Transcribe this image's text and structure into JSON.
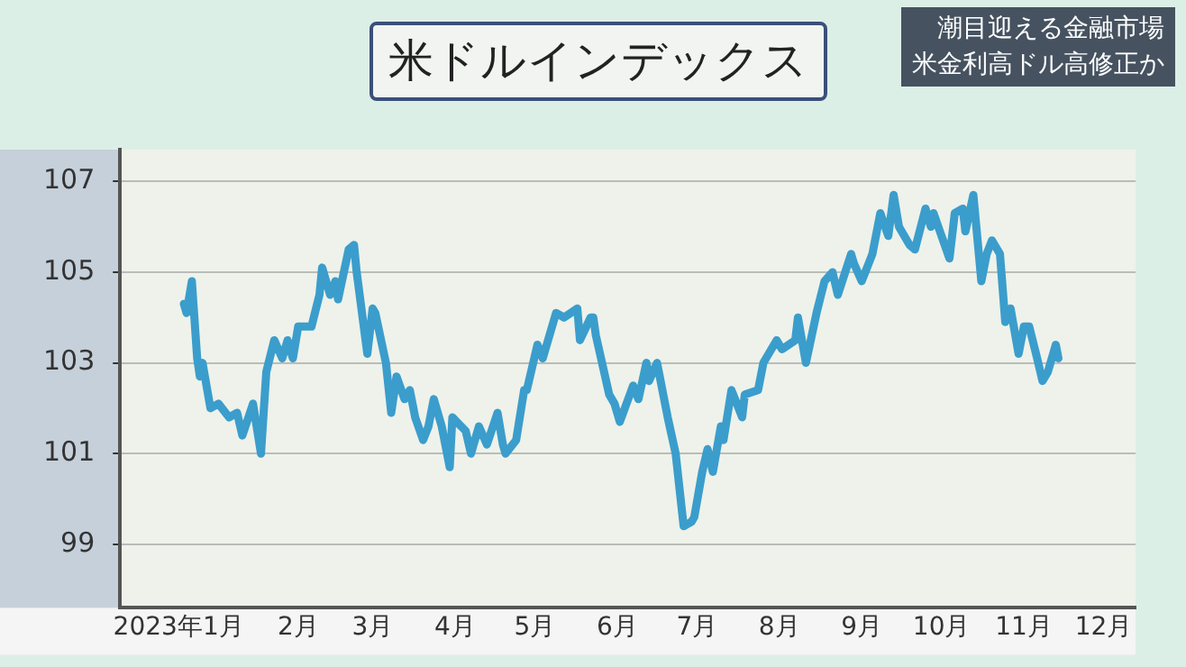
{
  "chart_data": {
    "type": "line",
    "title": "米ドルインデックス",
    "annotations": [
      "潮目迎える金融市場",
      "米金利高ドル高修正か"
    ],
    "x": [
      "2023-01-03",
      "2023-01-04",
      "2023-01-06",
      "2023-01-08",
      "2023-01-09",
      "2023-01-10",
      "2023-01-13",
      "2023-01-16",
      "2023-01-20",
      "2023-01-23",
      "2023-01-25",
      "2023-01-29",
      "2023-02-01",
      "2023-02-03",
      "2023-02-06",
      "2023-02-09",
      "2023-02-11",
      "2023-02-13",
      "2023-02-15",
      "2023-02-20",
      "2023-02-23",
      "2023-02-24",
      "2023-02-27",
      "2023-03-01",
      "2023-03-02",
      "2023-03-06",
      "2023-03-08",
      "2023-03-09",
      "2023-03-13",
      "2023-03-15",
      "2023-03-16",
      "2023-03-20",
      "2023-03-22",
      "2023-03-24",
      "2023-03-27",
      "2023-03-29",
      "2023-03-31",
      "2023-04-03",
      "2023-04-05",
      "2023-04-07",
      "2023-04-10",
      "2023-04-13",
      "2023-04-14",
      "2023-04-19",
      "2023-04-21",
      "2023-04-24",
      "2023-04-27",
      "2023-05-01",
      "2023-05-03",
      "2023-05-04",
      "2023-05-08",
      "2023-05-11",
      "2023-05-12",
      "2023-05-16",
      "2023-05-18",
      "2023-05-23",
      "2023-05-26",
      "2023-05-31",
      "2023-06-01",
      "2023-06-05",
      "2023-06-06",
      "2023-06-07",
      "2023-06-12",
      "2023-06-14",
      "2023-06-16",
      "2023-06-21",
      "2023-06-23",
      "2023-06-26",
      "2023-06-27",
      "2023-06-30",
      "2023-07-04",
      "2023-07-07",
      "2023-07-10",
      "2023-07-13",
      "2023-07-14",
      "2023-07-17",
      "2023-07-19",
      "2023-07-21",
      "2023-07-24",
      "2023-07-25",
      "2023-07-28",
      "2023-08-01",
      "2023-08-02",
      "2023-08-07",
      "2023-08-09",
      "2023-08-14",
      "2023-08-16",
      "2023-08-21",
      "2023-08-22",
      "2023-08-25",
      "2023-08-29",
      "2023-09-01",
      "2023-09-04",
      "2023-09-06",
      "2023-09-11",
      "2023-09-12",
      "2023-09-15",
      "2023-09-19",
      "2023-09-22",
      "2023-09-25",
      "2023-09-27",
      "2023-09-29",
      "2023-10-03",
      "2023-10-05",
      "2023-10-09",
      "2023-10-11",
      "2023-10-12",
      "2023-10-18",
      "2023-10-20",
      "2023-10-23",
      "2023-10-24",
      "2023-10-27",
      "2023-10-30",
      "2023-11-01",
      "2023-11-03",
      "2023-11-06",
      "2023-11-08",
      "2023-11-10",
      "2023-11-13",
      "2023-11-15",
      "2023-11-17",
      "2023-11-20",
      "2023-11-22",
      "2023-11-24",
      "2023-11-27",
      "2023-11-28"
    ],
    "values": [
      104.3,
      104.1,
      104.8,
      103.1,
      102.7,
      103.0,
      102.0,
      102.1,
      101.8,
      101.9,
      101.4,
      102.1,
      101.0,
      102.8,
      103.5,
      103.1,
      103.5,
      103.1,
      103.8,
      103.8,
      104.5,
      105.1,
      104.5,
      104.8,
      104.4,
      105.5,
      105.6,
      105.0,
      103.2,
      104.2,
      104.1,
      103.0,
      101.9,
      102.7,
      102.2,
      102.4,
      101.8,
      101.3,
      101.6,
      102.2,
      101.6,
      100.7,
      101.8,
      101.5,
      101.0,
      101.6,
      101.2,
      101.9,
      101.2,
      101.0,
      101.3,
      102.4,
      102.4,
      103.4,
      103.1,
      104.1,
      104.0,
      104.2,
      103.5,
      104.0,
      104.0,
      103.6,
      102.3,
      102.1,
      101.7,
      102.5,
      102.2,
      103.0,
      102.6,
      103.0,
      101.8,
      101.0,
      99.4,
      99.5,
      99.6,
      100.6,
      101.1,
      100.6,
      101.6,
      101.3,
      102.4,
      101.8,
      102.3,
      102.4,
      103.0,
      103.5,
      103.3,
      103.5,
      104.0,
      103.0,
      104.1,
      104.8,
      105.0,
      104.5,
      105.4,
      105.2,
      104.8,
      105.4,
      106.3,
      105.8,
      106.7,
      106.0,
      105.6,
      105.5,
      106.4,
      106.0,
      106.3,
      105.3,
      106.3,
      106.4,
      105.9,
      106.7,
      104.8,
      105.4,
      105.7,
      105.4,
      103.9,
      104.2,
      103.2,
      103.8,
      103.8,
      103.1,
      102.6,
      102.8,
      103.4,
      103.1
    ],
    "color": "#3b9dcc",
    "xlim": [
      "2022-12-10",
      "2023-12-27"
    ],
    "xticks": [
      {
        "value": "2023-01-01",
        "label": "2023年1月"
      },
      {
        "value": "2023-02-15",
        "label": "2月"
      },
      {
        "value": "2023-03-15",
        "label": "3月"
      },
      {
        "value": "2023-04-15",
        "label": "4月"
      },
      {
        "value": "2023-05-15",
        "label": "5月"
      },
      {
        "value": "2023-06-15",
        "label": "6月"
      },
      {
        "value": "2023-07-15",
        "label": "7月"
      },
      {
        "value": "2023-08-15",
        "label": "8月"
      },
      {
        "value": "2023-09-15",
        "label": "9月"
      },
      {
        "value": "2023-10-15",
        "label": "10月"
      },
      {
        "value": "2023-11-15",
        "label": "11月"
      },
      {
        "value": "2023-12-15",
        "label": "12月"
      }
    ],
    "ylim": [
      97.6,
      107.7
    ],
    "yticks": [
      99,
      101,
      103,
      105,
      107
    ],
    "grid": "y",
    "legend": false,
    "marker": "none",
    "line_style": "solid"
  }
}
